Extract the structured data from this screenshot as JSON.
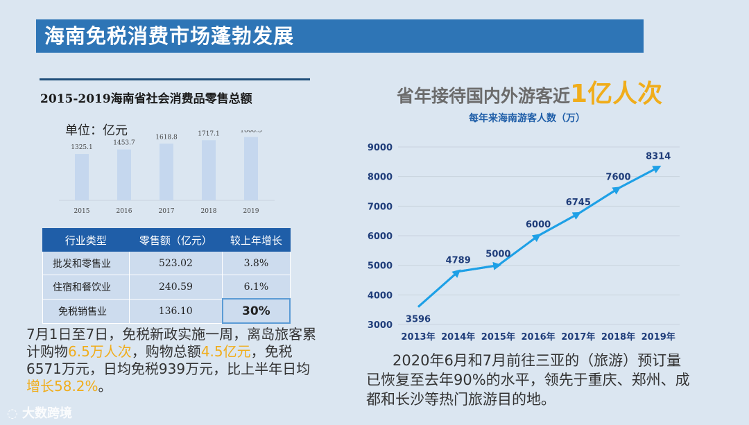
{
  "page_title": "海南免税消费市场蓬勃发展",
  "left_section": {
    "chart_title": "2015-2019海南省社会消费品零售总额",
    "unit_label": "单位：亿元",
    "table": {
      "headers": [
        "行业类型",
        "零售额（亿元）",
        "较上年增长"
      ],
      "rows": [
        {
          "type": "批发和零售业",
          "amount": "523.02",
          "growth": "3.8%"
        },
        {
          "type": "住宿和餐饮业",
          "amount": "240.59",
          "growth": "6.1%"
        },
        {
          "type": "免税销售业",
          "amount": "136.10",
          "growth": "30%"
        }
      ]
    },
    "paragraph": {
      "p1": "7月1日至7日，免税新政实施一周，离岛旅客累计购物",
      "h1": "6.5万人次",
      "p2": "，购物总额",
      "h2": "4.5亿元",
      "p3": "，免税6571万元，日均免税939万元，比上半年日均",
      "h3": "增长58.2%",
      "p4": "。"
    }
  },
  "right_section": {
    "headline_prefix": "省年接待国内外游客近",
    "headline_big": "1亿人次",
    "paragraph": "2020年6月和7月前往三亚的（旅游）预订量已恢复至去年90%的水平，领先于重庆、郑州、成都和长沙等热门旅游目的地。"
  },
  "watermark": "大数跨境",
  "chart_data": [
    {
      "type": "bar",
      "title": "2015-2019海南省社会消费品零售总额",
      "ylabel": "单位：亿元",
      "categories": [
        "2015",
        "2016",
        "2017",
        "2018",
        "2019"
      ],
      "labels": [
        "1325.1",
        "1453.7",
        "1618.8",
        "1717.1",
        "1808.3"
      ],
      "values": [
        1325.1,
        1453.7,
        1618.8,
        1717.1,
        1808.3
      ],
      "ylim": [
        0,
        2000
      ],
      "color": "#c5d7ee"
    },
    {
      "type": "line",
      "title": "每年来海南游客人数（万）",
      "categories": [
        "2013年",
        "2014年",
        "2015年",
        "2016年",
        "2017年",
        "2018年",
        "2019年"
      ],
      "values": [
        3596,
        4789,
        5000,
        6000,
        6745,
        7600,
        8314
      ],
      "yticks": [
        3000,
        4000,
        5000,
        6000,
        7000,
        8000,
        9000
      ],
      "ylim": [
        3000,
        9000
      ],
      "color": "#1ea0e6"
    }
  ]
}
